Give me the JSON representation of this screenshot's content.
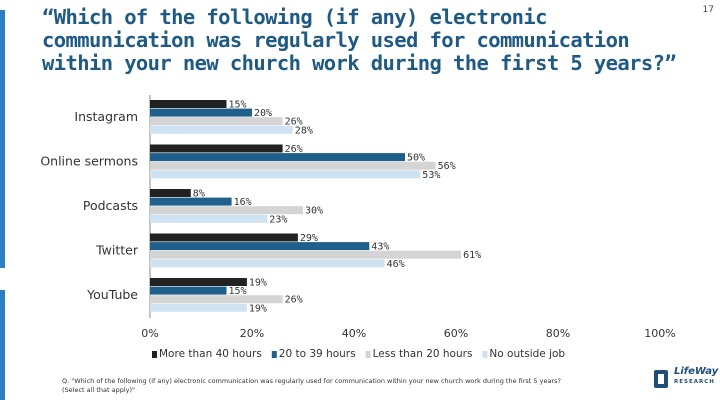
{
  "page": {
    "title": "“Which of the following (if any) electronic communication was regularly used for communication within your new church work during the first 5 years?”",
    "page_number": "17",
    "footnote": "Q. \"Which of the following (if any) electronic communication was regularly used for communication within your new church work during the first 5 years? (Select all that apply)\"",
    "logo_text": "LifeWay",
    "logo_subtext": "RESEARCH",
    "accent_color": "#2b7fc3"
  },
  "chart_data": {
    "type": "bar",
    "orientation": "horizontal",
    "categories": [
      "Instagram",
      "Online sermons",
      "Podcasts",
      "Twitter",
      "YouTube"
    ],
    "series": [
      {
        "name": "More than 40 hours",
        "color": "#222222",
        "values": [
          15,
          26,
          8,
          29,
          19
        ]
      },
      {
        "name": "20 to 39 hours",
        "color": "#1f5f8b",
        "values": [
          20,
          50,
          16,
          43,
          15
        ]
      },
      {
        "name": "Less than 20 hours",
        "color": "#d4d4d4",
        "values": [
          26,
          56,
          30,
          61,
          26
        ]
      },
      {
        "name": "No outside job",
        "color": "#cfe2f2",
        "values": [
          28,
          53,
          23,
          46,
          19
        ]
      }
    ],
    "value_suffix": "%",
    "xlim": [
      0,
      100
    ],
    "xticks": [
      0,
      20,
      40,
      60,
      80,
      100
    ],
    "xtick_labels": [
      "0%",
      "20%",
      "40%",
      "60%",
      "80%",
      "100%"
    ],
    "grid": false,
    "legend_position": "bottom"
  }
}
